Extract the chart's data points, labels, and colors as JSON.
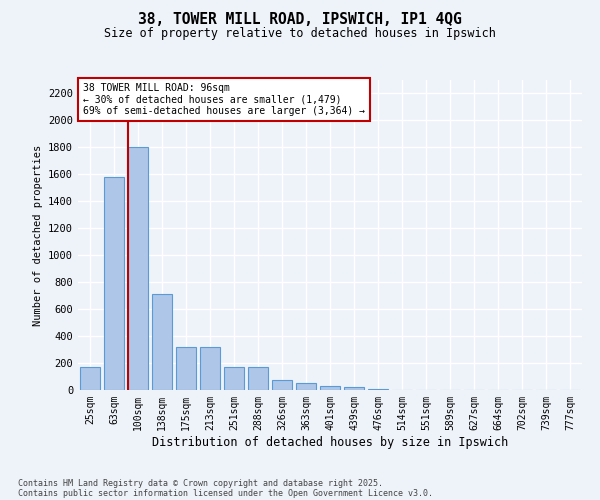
{
  "title1": "38, TOWER MILL ROAD, IPSWICH, IP1 4QG",
  "title2": "Size of property relative to detached houses in Ipswich",
  "xlabel": "Distribution of detached houses by size in Ipswich",
  "ylabel": "Number of detached properties",
  "categories": [
    "25sqm",
    "63sqm",
    "100sqm",
    "138sqm",
    "175sqm",
    "213sqm",
    "251sqm",
    "288sqm",
    "326sqm",
    "363sqm",
    "401sqm",
    "439sqm",
    "476sqm",
    "514sqm",
    "551sqm",
    "589sqm",
    "627sqm",
    "664sqm",
    "702sqm",
    "739sqm",
    "777sqm"
  ],
  "values": [
    170,
    1580,
    1800,
    710,
    320,
    320,
    170,
    170,
    75,
    50,
    30,
    20,
    10,
    0,
    0,
    0,
    0,
    0,
    0,
    0,
    0
  ],
  "bar_color": "#aec6e8",
  "bar_edge_color": "#5b9bd5",
  "property_line_color": "#c00000",
  "annotation_line1": "38 TOWER MILL ROAD: 96sqm",
  "annotation_line2": "← 30% of detached houses are smaller (1,479)",
  "annotation_line3": "69% of semi-detached houses are larger (3,364) →",
  "annotation_box_color": "#c00000",
  "ylim": [
    0,
    2300
  ],
  "yticks": [
    0,
    200,
    400,
    600,
    800,
    1000,
    1200,
    1400,
    1600,
    1800,
    2000,
    2200
  ],
  "footer1": "Contains HM Land Registry data © Crown copyright and database right 2025.",
  "footer2": "Contains public sector information licensed under the Open Government Licence v3.0.",
  "bg_color": "#eef2f9",
  "plot_bg_color": "#eef2f9",
  "grid_color": "#ffffff"
}
